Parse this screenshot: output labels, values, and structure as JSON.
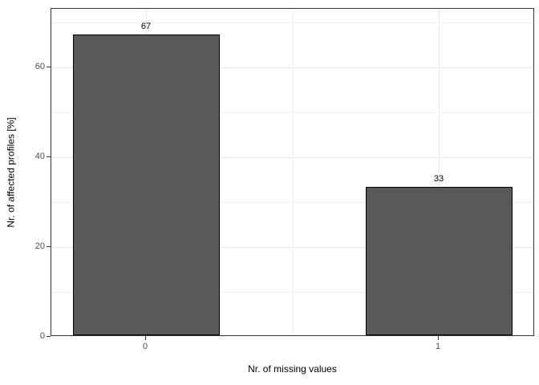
{
  "chart_data": {
    "type": "bar",
    "categories": [
      "0",
      "1"
    ],
    "values": [
      67,
      33
    ],
    "title": "",
    "xlabel": "Nr. of missing values",
    "ylabel": "Nr. of affected profiles [%]",
    "ylim": [
      0,
      73
    ],
    "y_major_ticks": [
      0,
      20,
      40,
      60
    ],
    "y_minor_ticks": [
      10,
      30,
      50,
      70
    ],
    "grid": "on",
    "legend": "none",
    "colors": {
      "bar_fill": "#595959",
      "bar_border": "#000000",
      "panel_border": "#333333",
      "grid_major": "#e8e8e8",
      "grid_minor": "#f2f2f2",
      "tick_label": "#4d4d4d",
      "axis_title": "#000000",
      "background": "#ffffff"
    }
  }
}
